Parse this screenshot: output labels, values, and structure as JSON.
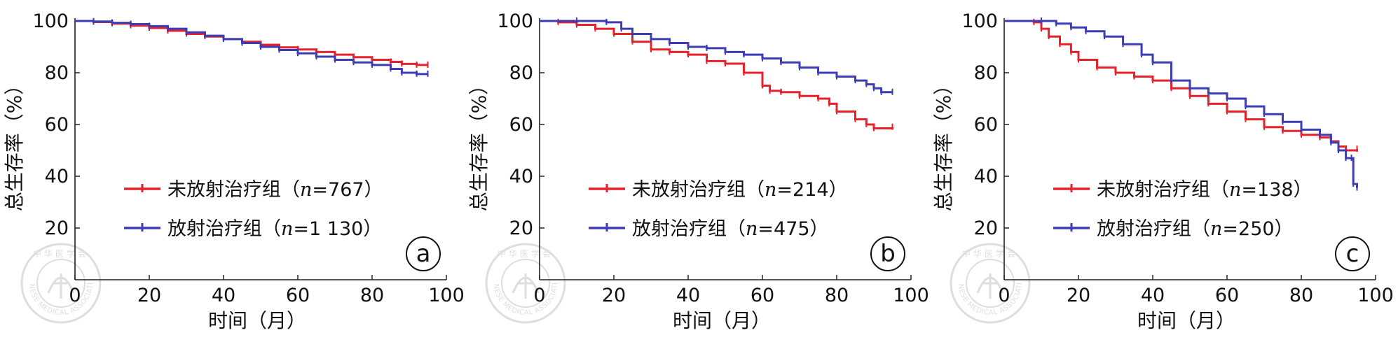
{
  "chart_data": [
    {
      "type": "line",
      "panel_label": "a",
      "xlabel": "时间（月）",
      "ylabel": "总生存率（%）",
      "xlim": [
        0,
        100
      ],
      "ylim": [
        0,
        100
      ],
      "x_ticks": [
        "0",
        "20",
        "40",
        "60",
        "80",
        "100"
      ],
      "y_ticks": [
        "20",
        "40",
        "60",
        "80",
        "100"
      ],
      "legend_position": "lower-left",
      "series": [
        {
          "name": "未放射治疗组（n=767）",
          "color": "#e8202a",
          "points": [
            [
              0,
              100
            ],
            [
              5,
              99.6
            ],
            [
              10,
              99
            ],
            [
              15,
              98.2
            ],
            [
              20,
              97.3
            ],
            [
              25,
              96.2
            ],
            [
              30,
              95
            ],
            [
              35,
              94
            ],
            [
              40,
              93
            ],
            [
              45,
              92
            ],
            [
              50,
              90.8
            ],
            [
              55,
              89.8
            ],
            [
              60,
              89
            ],
            [
              65,
              88
            ],
            [
              70,
              87
            ],
            [
              75,
              86
            ],
            [
              80,
              85
            ],
            [
              85,
              84.2
            ],
            [
              88,
              83.4
            ],
            [
              92,
              83
            ],
            [
              95,
              83
            ]
          ]
        },
        {
          "name": "放射治疗组（n=1 130）",
          "color": "#3c3cb4",
          "points": [
            [
              0,
              100
            ],
            [
              5,
              99.8
            ],
            [
              10,
              99.3
            ],
            [
              15,
              98.8
            ],
            [
              20,
              98
            ],
            [
              25,
              97
            ],
            [
              30,
              95.6
            ],
            [
              35,
              94.3
            ],
            [
              40,
              93
            ],
            [
              45,
              91.5
            ],
            [
              50,
              90
            ],
            [
              55,
              88.8
            ],
            [
              60,
              87.5
            ],
            [
              65,
              86.2
            ],
            [
              70,
              85
            ],
            [
              75,
              84
            ],
            [
              80,
              83
            ],
            [
              85,
              81.5
            ],
            [
              88,
              80
            ],
            [
              92,
              79.5
            ],
            [
              95,
              79.5
            ]
          ]
        }
      ]
    },
    {
      "type": "line",
      "panel_label": "b",
      "xlabel": "时间（月）",
      "ylabel": "总生存率（%）",
      "xlim": [
        0,
        100
      ],
      "ylim": [
        0,
        100
      ],
      "x_ticks": [
        "0",
        "20",
        "40",
        "60",
        "80",
        "100"
      ],
      "y_ticks": [
        "20",
        "40",
        "60",
        "80",
        "100"
      ],
      "legend_position": "lower-left",
      "series": [
        {
          "name": "未放射治疗组（n=214）",
          "color": "#e8202a",
          "points": [
            [
              0,
              100
            ],
            [
              5,
              99.5
            ],
            [
              10,
              98.5
            ],
            [
              15,
              97
            ],
            [
              20,
              95
            ],
            [
              25,
              92
            ],
            [
              30,
              89
            ],
            [
              35,
              88
            ],
            [
              40,
              87
            ],
            [
              45,
              84.5
            ],
            [
              50,
              83.5
            ],
            [
              55,
              80
            ],
            [
              60,
              75
            ],
            [
              62,
              73
            ],
            [
              65,
              72.5
            ],
            [
              70,
              71
            ],
            [
              75,
              70
            ],
            [
              78,
              68
            ],
            [
              80,
              65
            ],
            [
              85,
              62
            ],
            [
              88,
              60
            ],
            [
              90,
              58.5
            ],
            [
              95,
              59
            ]
          ]
        },
        {
          "name": "放射治疗组（n=475）",
          "color": "#3c3cb4",
          "points": [
            [
              0,
              100
            ],
            [
              10,
              100
            ],
            [
              18,
              99.5
            ],
            [
              22,
              97
            ],
            [
              25,
              95
            ],
            [
              30,
              93
            ],
            [
              35,
              91.5
            ],
            [
              40,
              90
            ],
            [
              45,
              89.5
            ],
            [
              50,
              88
            ],
            [
              55,
              87
            ],
            [
              60,
              85.5
            ],
            [
              65,
              84
            ],
            [
              70,
              82
            ],
            [
              75,
              80
            ],
            [
              80,
              78.5
            ],
            [
              85,
              77
            ],
            [
              88,
              75.5
            ],
            [
              90,
              74
            ],
            [
              92,
              72.5
            ],
            [
              95,
              72.5
            ]
          ]
        }
      ]
    },
    {
      "type": "line",
      "panel_label": "c",
      "xlabel": "时间（月）",
      "ylabel": "总生存率（%）",
      "xlim": [
        0,
        100
      ],
      "ylim": [
        0,
        100
      ],
      "x_ticks": [
        "0",
        "20",
        "40",
        "60",
        "80",
        "100"
      ],
      "y_ticks": [
        "20",
        "40",
        "60",
        "80",
        "100"
      ],
      "legend_position": "lower-left",
      "series": [
        {
          "name": "未放射治疗组（n=138）",
          "color": "#e8202a",
          "points": [
            [
              0,
              100
            ],
            [
              8,
              99.5
            ],
            [
              10,
              97
            ],
            [
              12,
              94
            ],
            [
              15,
              91
            ],
            [
              18,
              88
            ],
            [
              20,
              85
            ],
            [
              25,
              82
            ],
            [
              30,
              80
            ],
            [
              35,
              78.5
            ],
            [
              40,
              77
            ],
            [
              45,
              74
            ],
            [
              50,
              71
            ],
            [
              55,
              68
            ],
            [
              60,
              65
            ],
            [
              65,
              62
            ],
            [
              70,
              59
            ],
            [
              75,
              57.5
            ],
            [
              80,
              56
            ],
            [
              85,
              55
            ],
            [
              88,
              53.5
            ],
            [
              90,
              51.5
            ],
            [
              92,
              50
            ],
            [
              95,
              50.5
            ]
          ]
        },
        {
          "name": "放射治疗组（n=250）",
          "color": "#3c3cb4",
          "points": [
            [
              0,
              100
            ],
            [
              10,
              100
            ],
            [
              14,
              99
            ],
            [
              18,
              97.5
            ],
            [
              22,
              96
            ],
            [
              27,
              94
            ],
            [
              32,
              91
            ],
            [
              37,
              87
            ],
            [
              40,
              84
            ],
            [
              45,
              77
            ],
            [
              50,
              74
            ],
            [
              55,
              72
            ],
            [
              60,
              70
            ],
            [
              65,
              67
            ],
            [
              70,
              64
            ],
            [
              75,
              61
            ],
            [
              80,
              58
            ],
            [
              85,
              56
            ],
            [
              88,
              53
            ],
            [
              90,
              50
            ],
            [
              92,
              47
            ],
            [
              93.5,
              47
            ],
            [
              94,
              37
            ],
            [
              95,
              35.5
            ]
          ]
        }
      ]
    }
  ],
  "legends": [
    [
      {
        "prefix": "未放射治疗组（",
        "italic": "n",
        "suffix": "=767）"
      },
      {
        "prefix": "放射治疗组（",
        "italic": "n",
        "suffix": "=1 130）"
      }
    ],
    [
      {
        "prefix": "未放射治疗组（",
        "italic": "n",
        "suffix": "=214）"
      },
      {
        "prefix": "放射治疗组（",
        "italic": "n",
        "suffix": "=475）"
      }
    ],
    [
      {
        "prefix": "未放射治疗组（",
        "italic": "n",
        "suffix": "=138）"
      },
      {
        "prefix": "放射治疗组（",
        "italic": "n",
        "suffix": "=250）"
      }
    ]
  ],
  "watermark": {
    "icon": "chinese-medical-association-seal",
    "text_top": "中华医学会",
    "text_ring": "CHINESE MEDICAL ASSOCIATION"
  }
}
